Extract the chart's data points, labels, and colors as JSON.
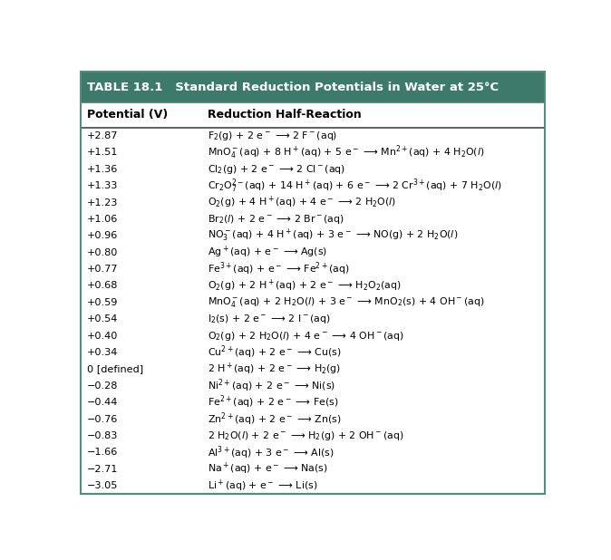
{
  "title": "TABLE 18.1   Standard Reduction Potentials in Water at 25°C",
  "col1_header": "Potential (V)",
  "col2_header": "Reduction Half-Reaction",
  "header_bg": "#3d7a6b",
  "header_text_color": "#ffffff",
  "border_color": "#5a8a7a",
  "rows": [
    [
      "+2.87",
      "F$_2$(g) + 2 e$^-$ ⟶ 2 F$^-$(aq)"
    ],
    [
      "+1.51",
      "MnO$_4^-$(aq) + 8 H$^+$(aq) + 5 e$^-$ ⟶ Mn$^{2+}$(aq) + 4 H$_2$O($l$)"
    ],
    [
      "+1.36",
      "Cl$_2$(g) + 2 e$^-$ ⟶ 2 Cl$^-$(aq)"
    ],
    [
      "+1.33",
      "Cr$_2$O$_7^{2-}$(aq) + 14 H$^+$(aq) + 6 e$^-$ ⟶ 2 Cr$^{3+}$(aq) + 7 H$_2$O($l$)"
    ],
    [
      "+1.23",
      "O$_2$(g) + 4 H$^+$(aq) + 4 e$^-$ ⟶ 2 H$_2$O($l$)"
    ],
    [
      "+1.06",
      "Br$_2$($l$) + 2 e$^-$ ⟶ 2 Br$^-$(aq)"
    ],
    [
      "+0.96",
      "NO$_3^-$(aq) + 4 H$^+$(aq) + 3 e$^-$ ⟶ NO(g) + 2 H$_2$O($l$)"
    ],
    [
      "+0.80",
      "Ag$^+$(aq) + e$^-$ ⟶ Ag(s)"
    ],
    [
      "+0.77",
      "Fe$^{3+}$(aq) + e$^-$ ⟶ Fe$^{2+}$(aq)"
    ],
    [
      "+0.68",
      "O$_2$(g) + 2 H$^+$(aq) + 2 e$^-$ ⟶ H$_2$O$_2$(aq)"
    ],
    [
      "+0.59",
      "MnO$_4^-$(aq) + 2 H$_2$O($l$) + 3 e$^-$ ⟶ MnO$_2$(s) + 4 OH$^-$(aq)"
    ],
    [
      "+0.54",
      "I$_2$(s) + 2 e$^-$ ⟶ 2 I$^-$(aq)"
    ],
    [
      "+0.40",
      "O$_2$(g) + 2 H$_2$O($l$) + 4 e$^-$ ⟶ 4 OH$^-$(aq)"
    ],
    [
      "+0.34",
      "Cu$^{2+}$(aq) + 2 e$^-$ ⟶ Cu(s)"
    ],
    [
      "0 [defined]",
      "2 H$^+$(aq) + 2 e$^-$ ⟶ H$_2$(g)"
    ],
    [
      "−0.28",
      "Ni$^{2+}$(aq) + 2 e$^-$ ⟶ Ni(s)"
    ],
    [
      "−0.44",
      "Fe$^{2+}$(aq) + 2 e$^-$ ⟶ Fe(s)"
    ],
    [
      "−0.76",
      "Zn$^{2+}$(aq) + 2 e$^-$ ⟶ Zn(s)"
    ],
    [
      "−0.83",
      "2 H$_2$O($l$) + 2 e$^-$ ⟶ H$_2$(g) + 2 OH$^-$(aq)"
    ],
    [
      "−1.66",
      "Al$^{3+}$(aq) + 3 e$^-$ ⟶ Al(s)"
    ],
    [
      "−2.71",
      "Na$^+$(aq) + e$^-$ ⟶ Na(s)"
    ],
    [
      "−3.05",
      "Li$^+$(aq) + e$^-$ ⟶ Li(s)"
    ]
  ],
  "figwidth": 6.74,
  "figheight": 6.18,
  "dpi": 100
}
